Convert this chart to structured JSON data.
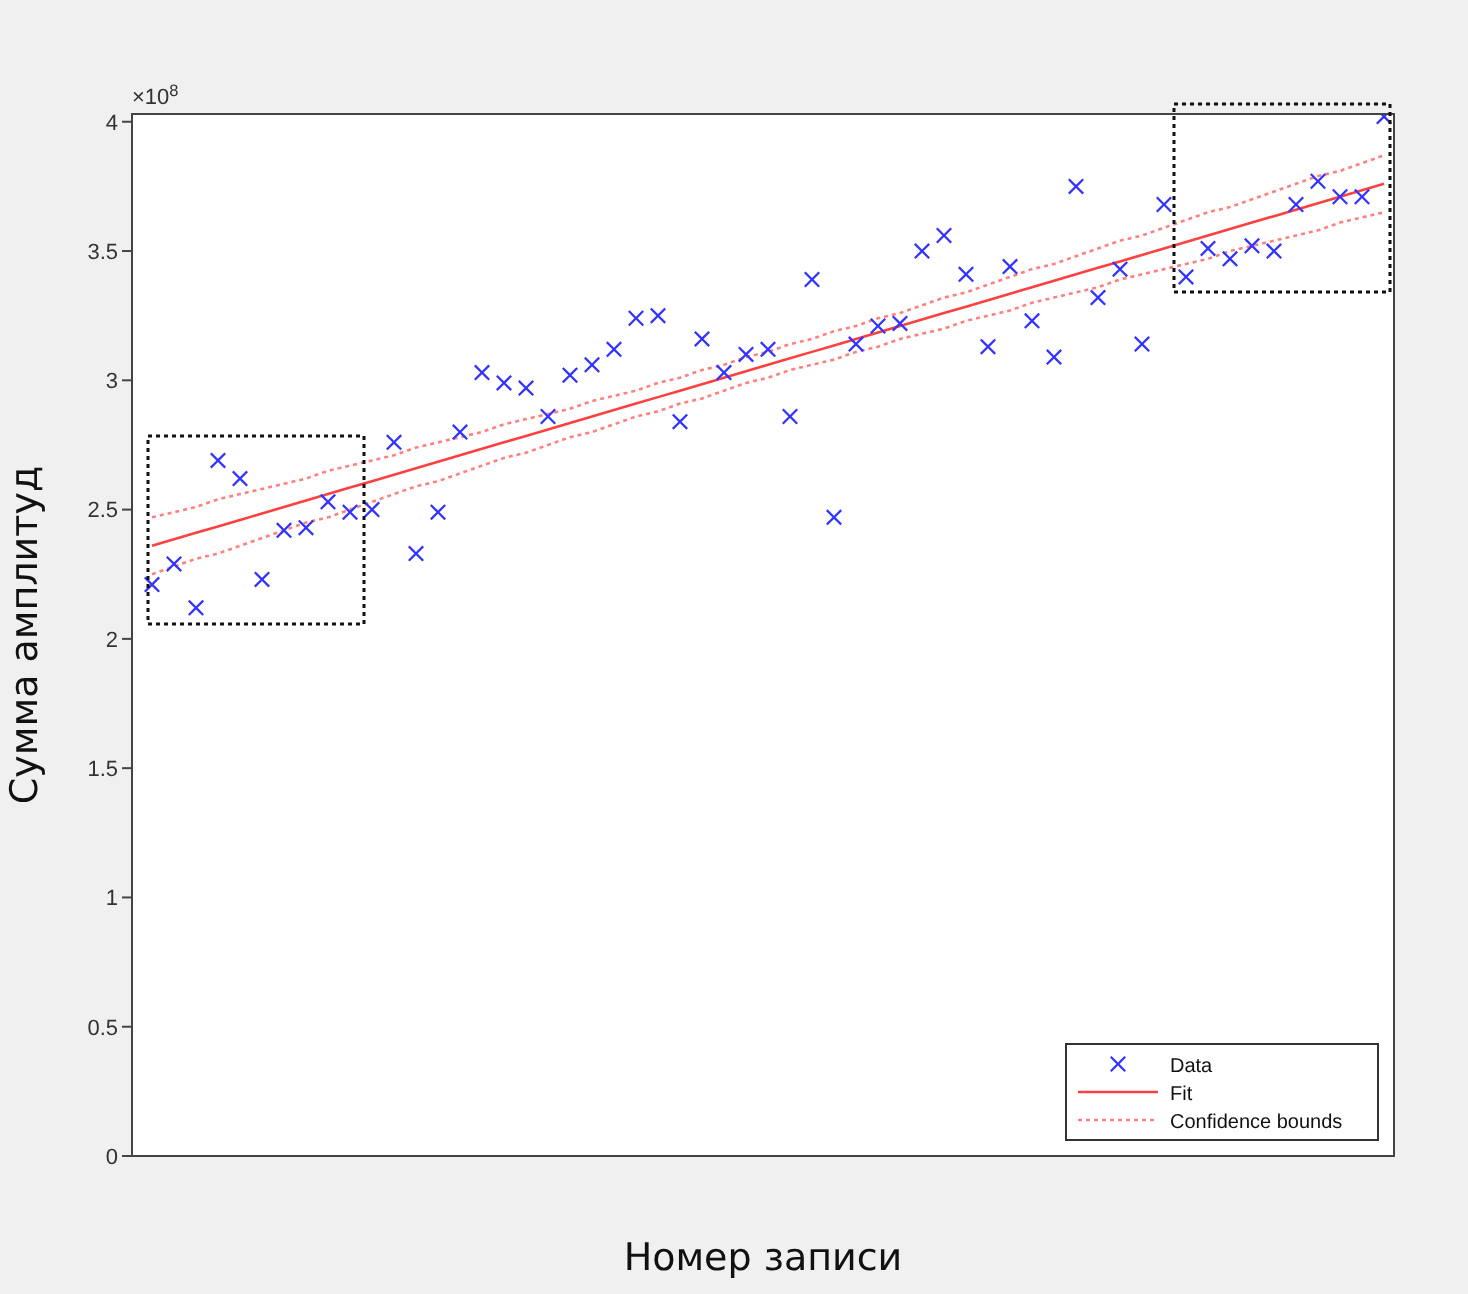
{
  "chart_data": {
    "type": "scatter",
    "xlabel": "Номер записи",
    "ylabel": "Сумма амплитуд",
    "annotations": [
      "×10$^{8}$"
    ],
    "categories": [
      null,
      null,
      null,
      null,
      null,
      null,
      null,
      null,
      null,
      null,
      null,
      null,
      null,
      null,
      null,
      null,
      null,
      null,
      null,
      null,
      null,
      null,
      null,
      null,
      null,
      null,
      null,
      null,
      null,
      null,
      null,
      null,
      null,
      null,
      null,
      null,
      null,
      null,
      null,
      null,
      null,
      null,
      null,
      null,
      null,
      null,
      null,
      null,
      null,
      null,
      null,
      null,
      null,
      null,
      null,
      null,
      null
    ],
    "ylim": [
      0,
      4.03
    ],
    "yticks": [
      0,
      0.5,
      1,
      1.5,
      2,
      2.5,
      3,
      3.5,
      4
    ],
    "grid": false,
    "legend": "bottom right",
    "series": [
      {
        "name": "Data",
        "marker": "cross",
        "color": "#3333ff",
        "values": [
          2.21,
          2.29,
          2.12,
          2.69,
          2.62,
          2.23,
          2.42,
          2.43,
          2.53,
          2.49,
          2.5,
          2.76,
          2.33,
          2.49,
          2.8,
          3.03,
          2.99,
          2.97,
          2.86,
          3.02,
          3.06,
          3.12,
          3.24,
          3.25,
          2.84,
          3.16,
          3.03,
          3.1,
          3.12,
          2.86,
          3.39,
          2.47,
          3.14,
          3.21,
          3.22,
          3.5,
          3.56,
          3.41,
          3.13,
          3.44,
          3.23,
          3.09,
          3.75,
          3.32,
          3.43,
          3.14,
          3.68,
          3.4,
          3.51,
          3.47,
          3.52,
          3.5,
          3.68,
          3.77,
          3.71,
          3.71,
          4.02
        ]
      },
      {
        "name": "Fit",
        "type": "line",
        "line_style": "solid",
        "color": "#ff4040",
        "values": [
          2.36,
          2.385,
          2.41,
          2.435,
          2.46,
          2.485,
          2.51,
          2.535,
          2.56,
          2.585,
          2.61,
          2.635,
          2.66,
          2.685,
          2.71,
          2.735,
          2.76,
          2.785,
          2.81,
          2.835,
          2.86,
          2.885,
          2.91,
          2.935,
          2.96,
          2.985,
          3.01,
          3.035,
          3.06,
          3.085,
          3.11,
          3.135,
          3.16,
          3.185,
          3.21,
          3.235,
          3.26,
          3.285,
          3.31,
          3.335,
          3.36,
          3.385,
          3.41,
          3.435,
          3.46,
          3.485,
          3.51,
          3.535,
          3.56,
          3.585,
          3.61,
          3.635,
          3.66,
          3.685,
          3.71,
          3.735,
          3.76
        ]
      },
      {
        "name": "Confidence bounds",
        "type": "line",
        "line_style": "dotted",
        "color": "#ff8080",
        "values": [
          2.47,
          2.49,
          2.51,
          2.54,
          2.56,
          2.58,
          2.6,
          2.62,
          2.65,
          2.67,
          2.69,
          2.71,
          2.74,
          2.76,
          2.78,
          2.8,
          2.83,
          2.85,
          2.87,
          2.89,
          2.92,
          2.94,
          2.96,
          2.99,
          3.01,
          3.04,
          3.06,
          3.09,
          3.11,
          3.14,
          3.16,
          3.19,
          3.21,
          3.24,
          3.26,
          3.29,
          3.32,
          3.34,
          3.37,
          3.4,
          3.43,
          3.45,
          3.48,
          3.51,
          3.54,
          3.56,
          3.59,
          3.62,
          3.65,
          3.67,
          3.7,
          3.73,
          3.76,
          3.79,
          3.81,
          3.84,
          3.87
        ]
      },
      {
        "type": "line",
        "line_style": "dotted",
        "color": "#ff8080",
        "values": [
          2.25,
          2.28,
          2.31,
          2.33,
          2.36,
          2.39,
          2.42,
          2.45,
          2.47,
          2.5,
          2.53,
          2.56,
          2.59,
          2.61,
          2.64,
          2.67,
          2.7,
          2.72,
          2.75,
          2.78,
          2.8,
          2.83,
          2.86,
          2.88,
          2.91,
          2.93,
          2.96,
          2.99,
          3.01,
          3.04,
          3.06,
          3.08,
          3.11,
          3.13,
          3.16,
          3.18,
          3.2,
          3.23,
          3.25,
          3.27,
          3.3,
          3.32,
          3.34,
          3.36,
          3.39,
          3.41,
          3.43,
          3.45,
          3.47,
          3.5,
          3.52,
          3.54,
          3.56,
          3.58,
          3.61,
          3.63,
          3.65
        ]
      }
    ]
  }
}
